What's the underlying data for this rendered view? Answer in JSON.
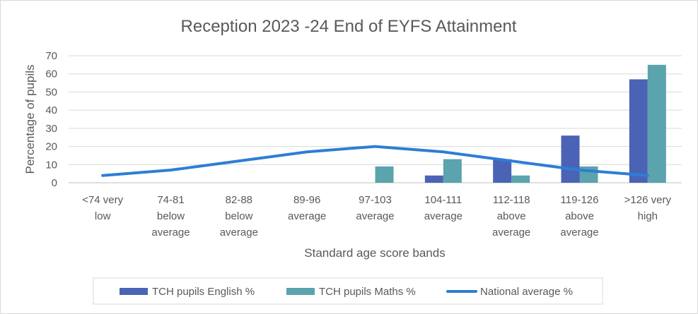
{
  "chart_data": {
    "type": "bar",
    "title": "Reception 2023 -24 End of EYFS Attainment",
    "xlabel": "Standard age score bands",
    "ylabel": "Percentage of pupils",
    "ylim": [
      0,
      70
    ],
    "yticks": [
      0,
      10,
      20,
      30,
      40,
      50,
      60,
      70
    ],
    "grid": true,
    "legend_position": "bottom",
    "categories": [
      [
        "<74 very",
        "low"
      ],
      [
        "74-81",
        "below",
        "average"
      ],
      [
        "82-88",
        "below",
        "average"
      ],
      [
        "89-96",
        "average"
      ],
      [
        "97-103",
        "average"
      ],
      [
        "104-111",
        "average"
      ],
      [
        "112-118",
        "above",
        "average"
      ],
      [
        "119-126",
        "above",
        "average"
      ],
      [
        ">126 very",
        "high"
      ]
    ],
    "series": [
      {
        "name": "TCH pupils English %",
        "type": "bar",
        "color": "#4a63b5",
        "values": [
          0,
          0,
          0,
          0,
          0,
          4,
          13,
          26,
          57
        ]
      },
      {
        "name": "TCH pupils Maths %",
        "type": "bar",
        "color": "#5ba3ad",
        "values": [
          0,
          0,
          0,
          0,
          9,
          13,
          4,
          9,
          65
        ]
      },
      {
        "name": "National average %",
        "type": "line",
        "color": "#2e7dd6",
        "values": [
          4,
          7,
          12,
          17,
          20,
          17,
          12,
          7,
          4
        ]
      }
    ]
  }
}
